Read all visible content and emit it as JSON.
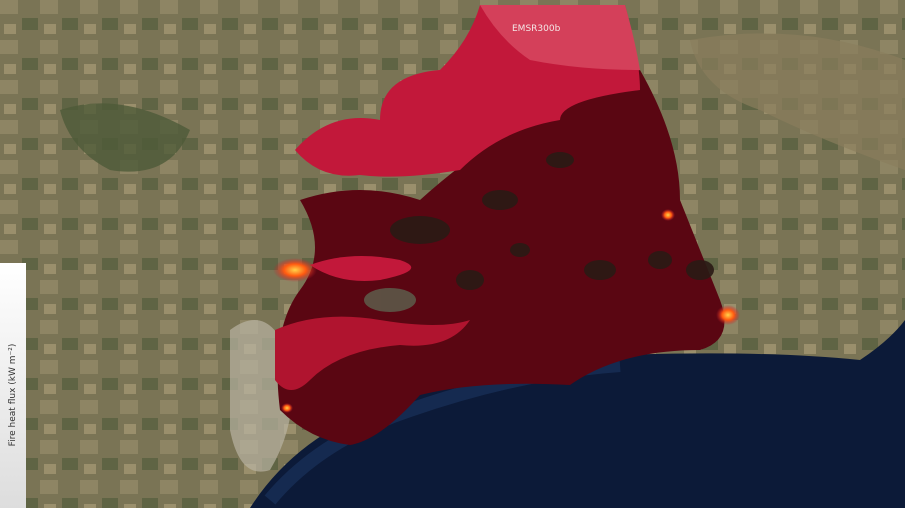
{
  "map": {
    "layer_label": "EMSR300b",
    "legend_title": "Fire heat flux (kW m⁻²)",
    "colors": {
      "burned_area": "#c2183a",
      "heat_dark": "#5a0612",
      "hotspot": "#ff6a00",
      "sea": "#0c1a38"
    }
  }
}
